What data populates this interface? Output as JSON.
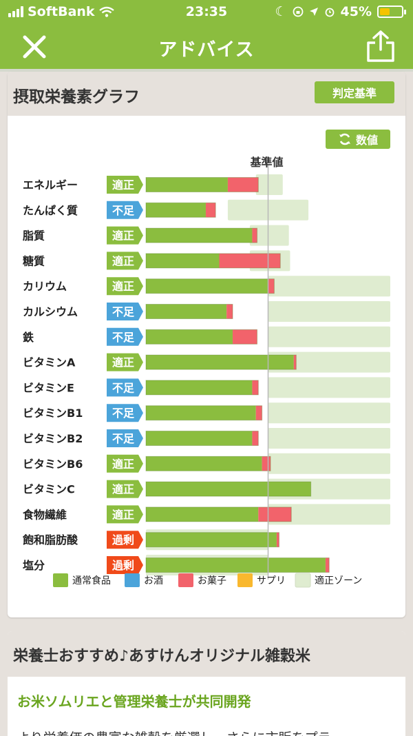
{
  "status": {
    "carrier": "SoftBank",
    "time": "23:35",
    "battery": "45%",
    "battery_level": 0.45
  },
  "nav": {
    "title": "アドバイス"
  },
  "section1": {
    "title": "摂取栄養素グラフ",
    "criteria_button": "判定基準",
    "values_button": "数値",
    "baseline_label": "基準値"
  },
  "colors": {
    "brand": "#8bbd3f",
    "food": "#8bbd3f",
    "alcohol": "#4ba4da",
    "snack": "#f2636b",
    "supplement": "#f9b82e",
    "zone": "#dfecd0",
    "adequate": "#8bbd3f",
    "deficient": "#4ba4da",
    "excess": "#f04a1a"
  },
  "chart_data": {
    "type": "bar",
    "baseline": 100,
    "categories": [
      "エネルギー",
      "たんぱく質",
      "脂質",
      "糖質",
      "カリウム",
      "カルシウム",
      "鉄",
      "ビタミンA",
      "ビタミンE",
      "ビタミンB1",
      "ビタミンB2",
      "ビタミンB6",
      "ビタミンC",
      "食物繊維",
      "飽和脂肪酸",
      "塩分"
    ],
    "status": [
      "適正",
      "不足",
      "適正",
      "適正",
      "適正",
      "不足",
      "不足",
      "適正",
      "不足",
      "不足",
      "不足",
      "適正",
      "適正",
      "適正",
      "過剰",
      "過剰"
    ],
    "status_kind": [
      "adequate",
      "deficient",
      "adequate",
      "adequate",
      "adequate",
      "deficient",
      "deficient",
      "adequate",
      "deficient",
      "deficient",
      "deficient",
      "adequate",
      "adequate",
      "adequate",
      "excess",
      "excess"
    ],
    "series": [
      {
        "name": "通常食品",
        "values": [
          67,
          49,
          87,
          60,
          100,
          66,
          71,
          121,
          87,
          90,
          87,
          95,
          135,
          92,
          107,
          147
        ]
      },
      {
        "name": "お酒",
        "values": [
          0,
          0,
          0,
          0,
          0,
          0,
          0,
          0,
          0,
          0,
          0,
          0,
          0,
          0,
          0,
          0
        ]
      },
      {
        "name": "お菓子",
        "values": [
          25,
          8,
          4,
          50,
          5,
          5,
          20,
          2,
          5,
          5,
          5,
          7,
          0,
          27,
          2,
          3
        ]
      },
      {
        "name": "サプリ",
        "values": [
          0,
          0,
          0,
          0,
          0,
          0,
          0,
          0,
          0,
          0,
          0,
          0,
          0,
          0,
          0,
          0
        ]
      }
    ],
    "zones": [
      [
        90,
        112
      ],
      [
        67,
        133
      ],
      [
        85,
        117
      ],
      [
        85,
        118
      ],
      [
        100,
        200
      ],
      [
        100,
        200
      ],
      [
        100,
        200
      ],
      [
        100,
        200
      ],
      [
        100,
        200
      ],
      [
        100,
        200
      ],
      [
        100,
        200
      ],
      [
        100,
        200
      ],
      [
        100,
        200
      ],
      [
        100,
        200
      ],
      [
        0,
        100
      ],
      [
        0,
        100
      ]
    ],
    "legend": [
      "通常食品",
      "お酒",
      "お菓子",
      "サプリ",
      "適正ゾーン"
    ],
    "legend_keys": [
      "food",
      "alcohol",
      "snack",
      "supplement",
      "zone"
    ]
  },
  "section2": {
    "title": "栄養士おすすめ♪あすけんオリジナル雑穀米",
    "link": "お米ソムリエと管理栄養士が共同開発",
    "body": "より栄養価の豊富な雑穀を厳選し、さらに市販をプラ"
  }
}
